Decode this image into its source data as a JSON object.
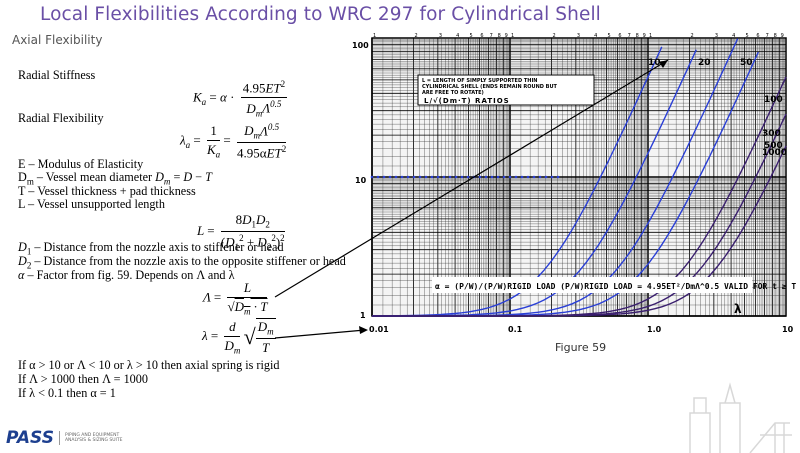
{
  "slide": {
    "title": "Local Flexibilities According to WRC 297 for Cylindrical Shell",
    "subtitle": "Axial Flexibility"
  },
  "content": {
    "radial_stiffness_label": "Radial Stiffness",
    "radial_flexibility_label": "Radial Flexibility",
    "def_E": "E – Modulus of Elasticity",
    "def_Dm_prefix": "D",
    "def_Dm_text": "– Vessel mean diameter",
    "def_T": "T – Vessel thickness + pad thickness",
    "def_L": "L – Vessel unsupported length",
    "def_D1": "– Distance from the nozzle axis to stiffener or head",
    "def_D2": "– Distance from the nozzle axis to the opposite stiffener or head",
    "def_alpha": "– Factor from fig. 59. Depends on Λ and λ",
    "cond_1": "If α > 10 or Λ < 10 or λ > 10 then axial spring is rigid",
    "cond_2": "If Λ > 1000 then Λ = 1000",
    "cond_3": "If λ < 0.1 then α = 1"
  },
  "figure": {
    "caption": "Figure 59",
    "legend_line1": "L = LENGTH OF SIMPLY SUPPORTED THIN",
    "legend_line2": "CYLINDRICAL SHELL (ENDS REMAIN ROUND BUT",
    "legend_line3": "ARE FREE TO ROTATE)",
    "legend_line4": "L/√(Dm·T) RATIOS",
    "curve_labels": [
      "10",
      "20",
      "50",
      "100",
      "300",
      "500",
      "1000"
    ],
    "bottom_formula": "α = (P/W)/(P/W)RIGID LOAD    (P/W)RIGID LOAD = 4.95ET²/DmΛ^0.5    VALID FOR t ≥ T",
    "bottom_lambda": "λ",
    "x_tick_labels": [
      "0.01",
      "0.1",
      "1.0",
      "10"
    ],
    "y_tick_label_top": "100",
    "y_tick_label_mid": "10",
    "y_tick_label_bottom": "1"
  },
  "logo": {
    "brand": "PASS",
    "tagline": "Piping and Equipment Analysis & Sizing Suite"
  },
  "colors": {
    "title": "#6a4fa6",
    "curves_blue": "#2a3fd6",
    "curves_dark": "#3a1f6e"
  }
}
